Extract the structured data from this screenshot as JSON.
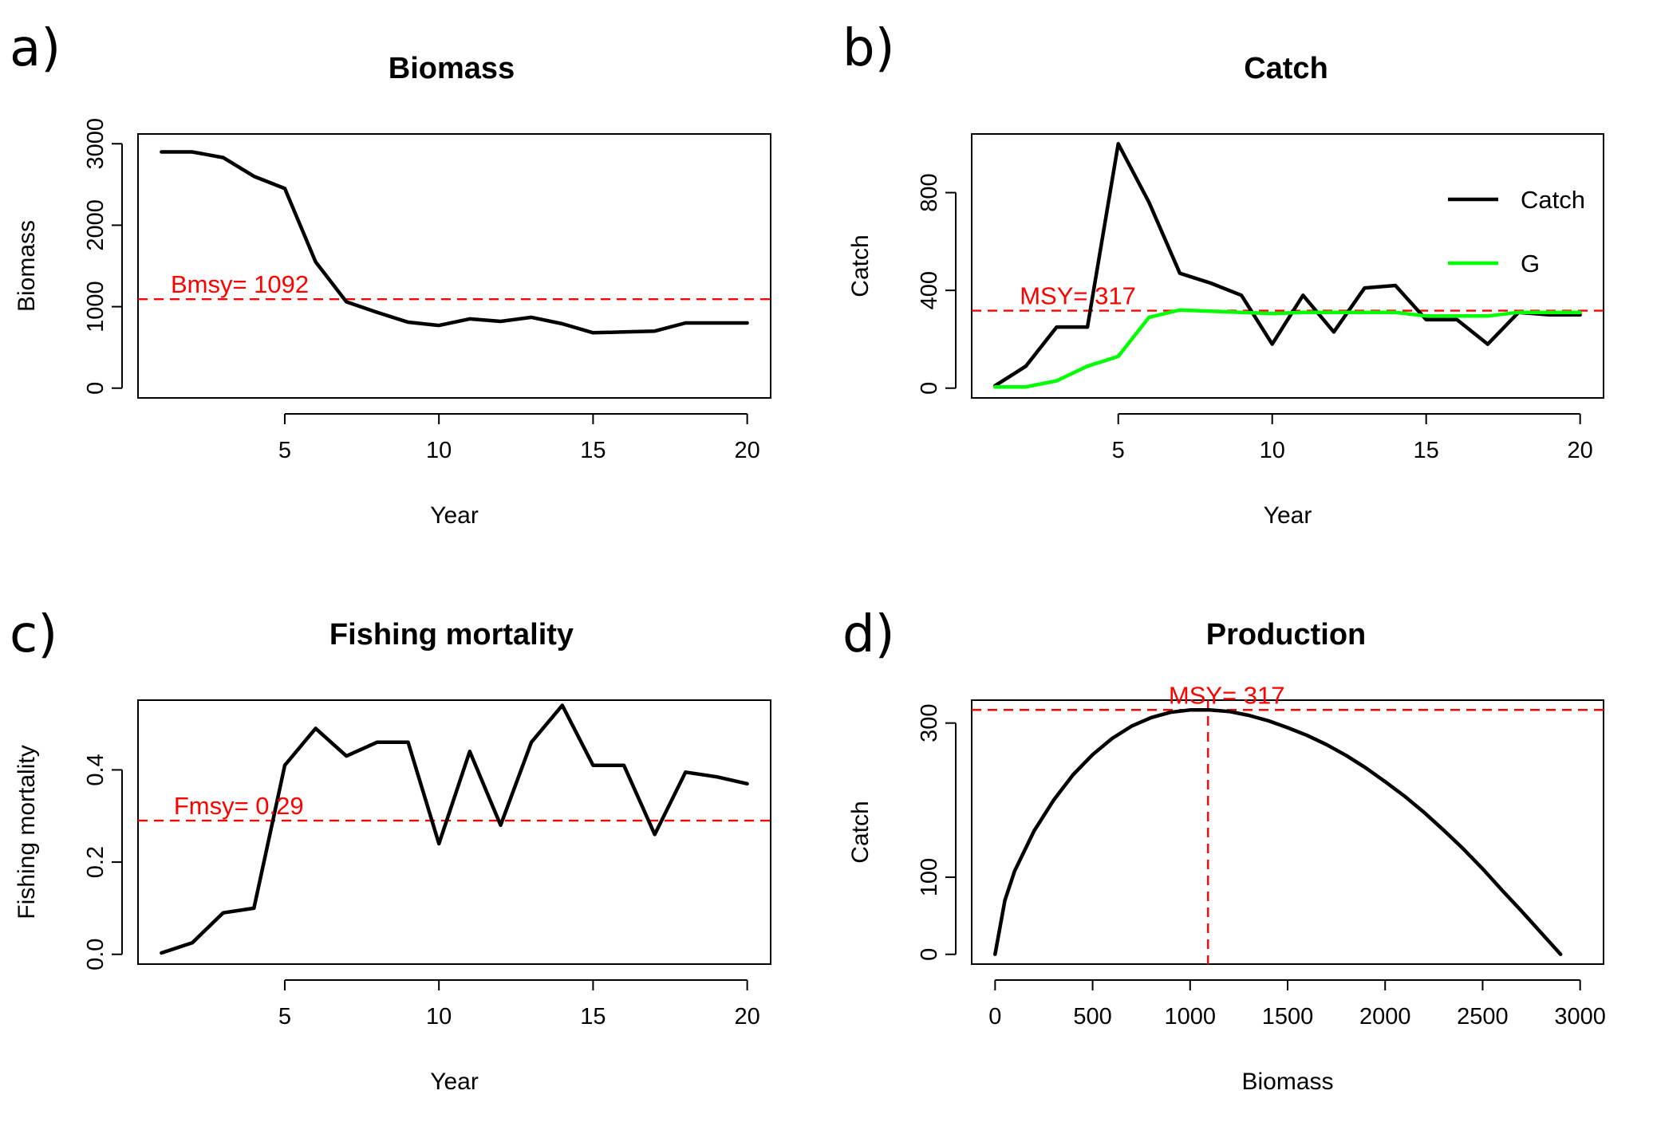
{
  "colors": {
    "reference": "#ff0000",
    "series_black": "#000000",
    "series_green": "#00ff00"
  },
  "chart_data": [
    {
      "panel": "a)",
      "type": "line",
      "title": "Biomass",
      "xlabel": "Year",
      "ylabel": "Biomass",
      "xlim": [
        1,
        20
      ],
      "ylim": [
        0,
        3000
      ],
      "xticks": [
        5,
        10,
        15,
        20
      ],
      "yticks": [
        0,
        1000,
        2000,
        3000
      ],
      "series": [
        {
          "color": "#000000",
          "x": [
            1,
            2,
            3,
            4,
            5,
            6,
            7,
            8,
            9,
            10,
            11,
            12,
            13,
            14,
            15,
            16,
            17,
            18,
            19,
            20
          ],
          "y": [
            2900,
            2900,
            2830,
            2600,
            2450,
            1550,
            1060,
            930,
            810,
            770,
            850,
            820,
            870,
            790,
            680,
            690,
            700,
            800,
            800,
            800
          ]
        }
      ],
      "hline": {
        "value": 1092,
        "label": "Bmsy= 1092",
        "label_x": 1.3
      }
    },
    {
      "panel": "b)",
      "type": "line",
      "title": "Catch",
      "xlabel": "Year",
      "ylabel": "Catch",
      "xlim": [
        1,
        20
      ],
      "ylim": [
        0,
        1000
      ],
      "xticks": [
        5,
        10,
        15,
        20
      ],
      "yticks": [
        0,
        400,
        800
      ],
      "series": [
        {
          "name": "Catch",
          "color": "#000000",
          "x": [
            1,
            2,
            3,
            4,
            5,
            6,
            7,
            8,
            9,
            10,
            11,
            12,
            13,
            14,
            15,
            16,
            17,
            18,
            19,
            20
          ],
          "y": [
            10,
            90,
            250,
            250,
            1000,
            760,
            470,
            430,
            380,
            180,
            380,
            230,
            410,
            420,
            280,
            280,
            180,
            310,
            300,
            300
          ]
        },
        {
          "name": "G",
          "color": "#00ff00",
          "x": [
            1,
            2,
            3,
            4,
            5,
            6,
            7,
            8,
            9,
            10,
            11,
            12,
            13,
            14,
            15,
            16,
            17,
            18,
            19,
            20
          ],
          "y": [
            5,
            5,
            30,
            90,
            130,
            290,
            320,
            315,
            310,
            305,
            310,
            310,
            310,
            310,
            295,
            295,
            295,
            310,
            310,
            310
          ]
        }
      ],
      "legend": {
        "position": "top-right",
        "entries": [
          "Catch",
          "G"
        ]
      },
      "hline": {
        "value": 317,
        "label": "MSY= 317",
        "label_x": 1.8
      }
    },
    {
      "panel": "c)",
      "type": "line",
      "title": "Fishing mortality",
      "xlabel": "Year",
      "ylabel": "Fishing mortality",
      "xlim": [
        1,
        20
      ],
      "ylim": [
        0,
        0.53
      ],
      "xticks": [
        5,
        10,
        15,
        20
      ],
      "yticks": [
        0.0,
        0.2,
        0.4
      ],
      "ytick_labels": [
        "0.0",
        "0.2",
        "0.4"
      ],
      "series": [
        {
          "color": "#000000",
          "x": [
            1,
            2,
            3,
            4,
            5,
            6,
            7,
            8,
            9,
            10,
            11,
            12,
            13,
            14,
            15,
            16,
            17,
            18,
            19,
            20
          ],
          "y": [
            0.003,
            0.025,
            0.09,
            0.1,
            0.41,
            0.49,
            0.43,
            0.46,
            0.46,
            0.24,
            0.44,
            0.28,
            0.46,
            0.54,
            0.41,
            0.41,
            0.26,
            0.395,
            0.385,
            0.37
          ]
        }
      ],
      "hline": {
        "value": 0.29,
        "label": "Fmsy= 0.29",
        "label_x": 1.4
      }
    },
    {
      "panel": "d)",
      "type": "line",
      "title": "Production",
      "xlabel": "Biomass",
      "ylabel": "Catch",
      "xlim": [
        0,
        3000
      ],
      "ylim": [
        0,
        317
      ],
      "xticks": [
        0,
        500,
        1000,
        1500,
        2000,
        2500,
        3000
      ],
      "yticks": [
        0,
        100,
        300
      ],
      "series": [
        {
          "color": "#000000",
          "x": [
            0,
            50,
            100,
            200,
            300,
            400,
            500,
            600,
            700,
            800,
            900,
            1000,
            1100,
            1200,
            1300,
            1400,
            1500,
            1600,
            1700,
            1800,
            1900,
            2000,
            2100,
            2200,
            2300,
            2400,
            2500,
            2600,
            2700,
            2800,
            2900
          ],
          "y": [
            0,
            70,
            108,
            160,
            200,
            233,
            259,
            280,
            296,
            307,
            314,
            317,
            317,
            315,
            310,
            303,
            294,
            284,
            272,
            258,
            242,
            224,
            205,
            184,
            161,
            137,
            111,
            83,
            56,
            28,
            0
          ]
        }
      ],
      "hline": {
        "value": 317,
        "label": "MSY= 317",
        "label_x": 890
      },
      "vline": {
        "value": 1092
      }
    }
  ]
}
